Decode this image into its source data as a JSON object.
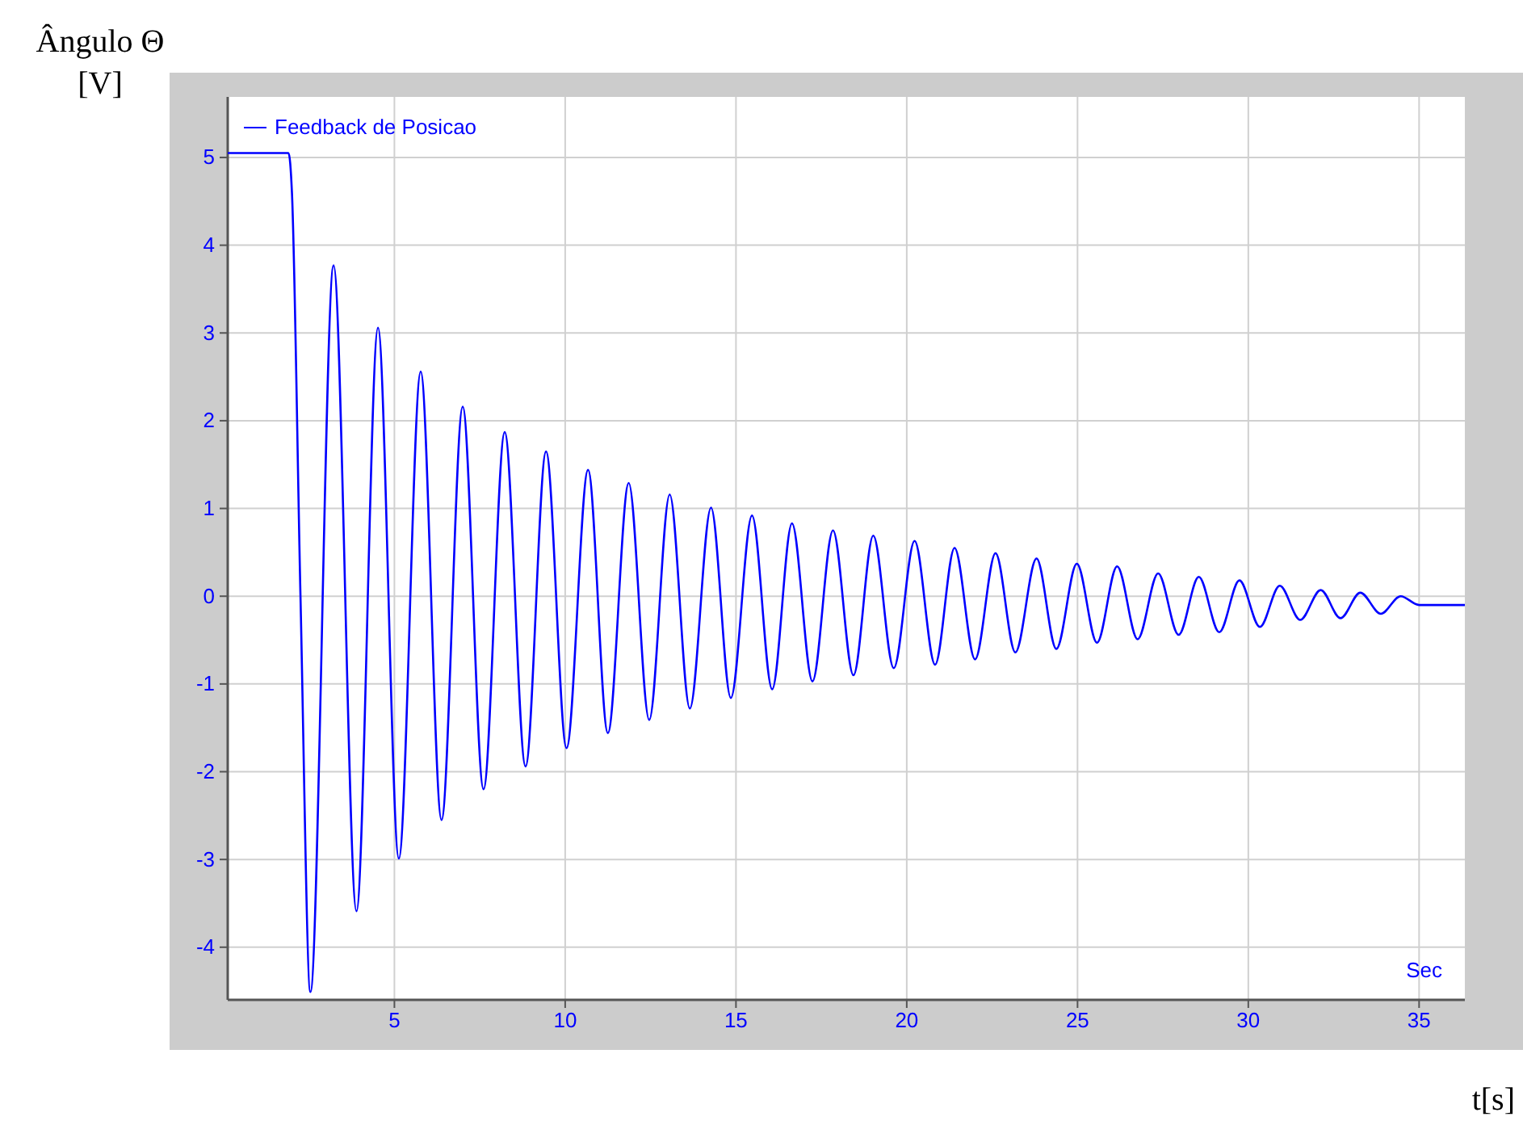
{
  "chart_data": {
    "type": "line",
    "ylabel": "Ângulo Θ [V]",
    "xlabel": "t[s]",
    "annotations": [
      "Sec"
    ],
    "xlim": [
      0.12,
      36.34
    ],
    "ylim": [
      -4.6,
      5.69
    ],
    "xticks": [
      5,
      10,
      15,
      20,
      25,
      30,
      35
    ],
    "yticks": [
      -4,
      -3,
      -2,
      -1,
      0,
      1,
      2,
      3,
      4,
      5
    ],
    "grid": true,
    "legend": "top left",
    "marker": "none",
    "line_style": "solid",
    "series": [
      {
        "name": "Feedback de Posicao",
        "color": "#0000ff",
        "x": [
          0.12,
          1.9,
          2.0,
          2.25,
          2.54,
          3.22,
          3.89,
          4.52,
          5.13,
          5.77,
          6.38,
          7.0,
          7.61,
          8.23,
          8.84,
          9.44,
          10.04,
          10.67,
          11.25,
          11.86,
          12.46,
          13.06,
          13.65,
          14.27,
          14.85,
          15.47,
          16.06,
          16.64,
          17.24,
          17.84,
          18.44,
          19.02,
          19.62,
          20.23,
          20.83,
          21.4,
          22.0,
          22.6,
          23.18,
          23.8,
          24.38,
          24.98,
          25.57,
          26.16,
          26.76,
          27.36,
          27.96,
          28.55,
          29.15,
          29.74,
          30.34,
          30.92,
          31.52,
          32.12,
          32.7,
          33.28,
          33.88,
          34.46,
          35.0,
          36.34
        ],
        "values": [
          5.05,
          5.05,
          4.6,
          0,
          -4.51,
          3.77,
          -3.59,
          3.06,
          -2.99,
          2.56,
          -2.55,
          2.16,
          -2.2,
          1.87,
          -1.94,
          1.65,
          -1.73,
          1.44,
          -1.56,
          1.29,
          -1.41,
          1.16,
          -1.28,
          1.01,
          -1.16,
          0.92,
          -1.06,
          0.83,
          -0.97,
          0.75,
          -0.9,
          0.69,
          -0.82,
          0.63,
          -0.78,
          0.55,
          -0.72,
          0.49,
          -0.64,
          0.43,
          -0.6,
          0.37,
          -0.53,
          0.34,
          -0.49,
          0.26,
          -0.44,
          0.22,
          -0.41,
          0.18,
          -0.35,
          0.12,
          -0.27,
          0.07,
          -0.25,
          0.04,
          -0.2,
          0.0,
          -0.1,
          -0.1
        ]
      }
    ]
  }
}
